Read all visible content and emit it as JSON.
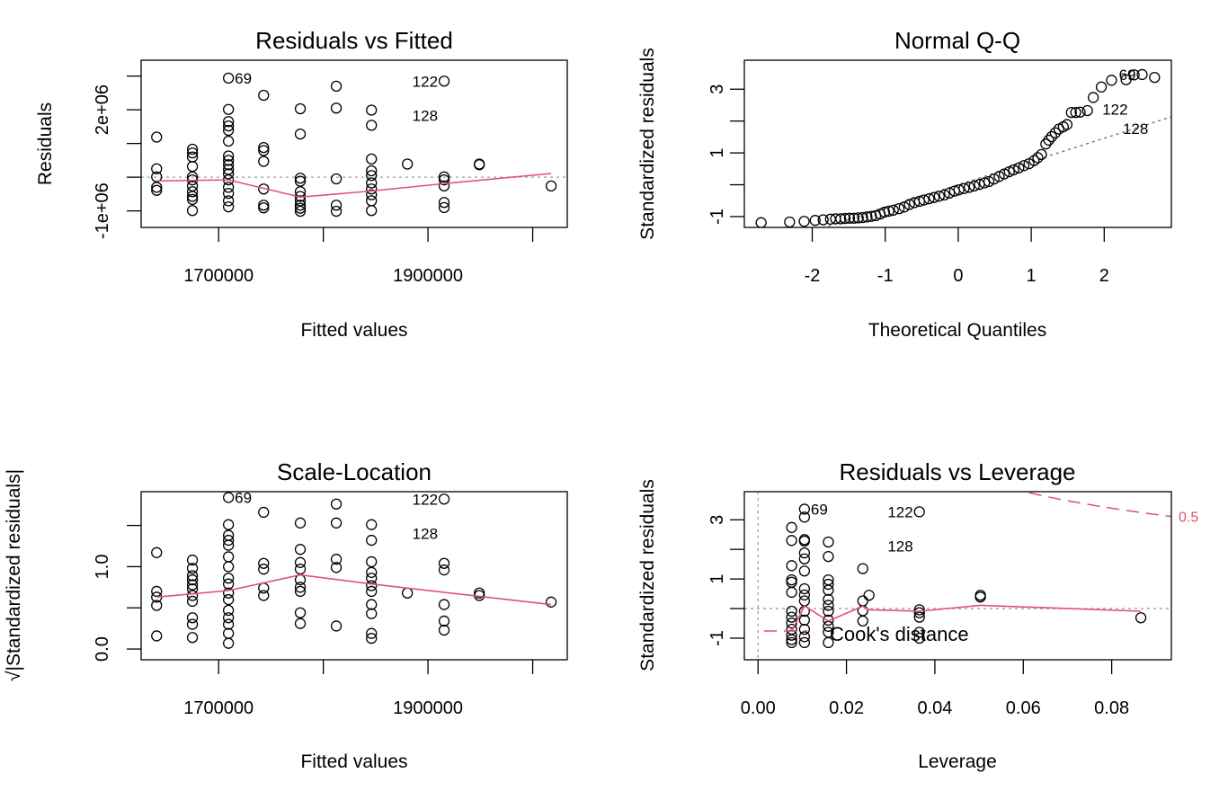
{
  "colors": {
    "points": "#000000",
    "smooth": "#DF536B",
    "reference": "#9E9E9E",
    "cook": "#DF536B"
  },
  "chart_data": [
    {
      "type": "scatter",
      "title": "Residuals vs Fitted",
      "xlabel": "Fitted values",
      "ylabel": "Residuals",
      "xlim": [
        1626000,
        2033000
      ],
      "ylim": [
        -1490000,
        3470000
      ],
      "xticks": [
        1700000,
        1800000,
        1900000,
        2000000
      ],
      "xtick_labels": [
        "1700000",
        "",
        "1900000",
        ""
      ],
      "yticks": [
        -1000000,
        0,
        1000000,
        2000000,
        3000000
      ],
      "ytick_labels": [
        "-1e+06",
        "",
        "",
        "2e+06",
        ""
      ],
      "grid": false,
      "columns": [
        {
          "x": 1640800,
          "y": [
            1190000,
            250000,
            10000,
            -300000,
            -390000
          ]
        },
        {
          "x": 1675000,
          "y": [
            830000,
            720000,
            600000,
            320000,
            10000,
            -80000,
            -260000,
            -430000,
            -570000,
            -660000,
            -990000
          ]
        },
        {
          "x": 1709400,
          "y": [
            2940000,
            2010000,
            1650000,
            1520000,
            1390000,
            1070000,
            630000,
            500000,
            370000,
            230000,
            100000,
            -80000,
            -300000,
            -480000,
            -700000,
            -880000
          ]
        },
        {
          "x": 1743000,
          "y": [
            2430000,
            880000,
            790000,
            470000,
            -350000,
            -830000,
            -910000
          ]
        },
        {
          "x": 1778000,
          "y": [
            2030000,
            1280000,
            -30000,
            -120000,
            -430000,
            -570000,
            -700000,
            -830000,
            -920000,
            -1010000
          ]
        },
        {
          "x": 1812400,
          "y": [
            2700000,
            2050000,
            -50000,
            -830000,
            -1010000
          ]
        },
        {
          "x": 1846000,
          "y": [
            1990000,
            1540000,
            540000,
            190000,
            50000,
            -170000,
            -350000,
            -520000,
            -700000,
            -990000
          ]
        },
        {
          "x": 1880300,
          "y": [
            390000
          ]
        },
        {
          "x": 1915400,
          "y": [
            2850000,
            10000,
            -80000,
            -260000,
            -750000,
            -900000
          ]
        },
        {
          "x": 1949000,
          "y": [
            390000,
            370000
          ]
        },
        {
          "x": 2017600,
          "y": [
            -260000
          ]
        }
      ],
      "smooth": [
        [
          1640800,
          -110000
        ],
        [
          1709400,
          -80000
        ],
        [
          1778000,
          -590000
        ],
        [
          1846000,
          -410000
        ],
        [
          1915400,
          -190000
        ],
        [
          2017600,
          110000
        ]
      ],
      "reference_lines": [
        {
          "orientation": "horizontal",
          "value": 0
        }
      ],
      "point_labels": [
        {
          "text": "69",
          "x": 1709400,
          "y": 2940000,
          "side": "right"
        },
        {
          "text": "122",
          "x": 1915400,
          "y": 2850000,
          "side": "left"
        },
        {
          "text": "128",
          "x": 1915400,
          "y": 2850000,
          "side": "left"
        }
      ]
    },
    {
      "type": "scatter",
      "title": "Normal Q-Q",
      "xlabel": "Theoretical Quantiles",
      "ylabel": "Standardized residuals",
      "xlim": [
        -2.93,
        2.92
      ],
      "ylim": [
        -1.34,
        3.91
      ],
      "xticks": [
        -2,
        -1,
        0,
        1,
        2
      ],
      "xtick_labels": [
        "-2",
        "-1",
        "0",
        "1",
        "2"
      ],
      "yticks": [
        -1,
        0,
        1,
        2,
        3
      ],
      "ytick_labels": [
        "-1",
        "",
        "1",
        "",
        "3"
      ],
      "grid": false,
      "points": [
        [
          -2.7,
          -1.19
        ],
        [
          -2.31,
          -1.17
        ],
        [
          -2.11,
          -1.15
        ],
        [
          -1.96,
          -1.12
        ],
        [
          -1.85,
          -1.1
        ],
        [
          -1.75,
          -1.08
        ],
        [
          -1.68,
          -1.07
        ],
        [
          -1.61,
          -1.07
        ],
        [
          -1.55,
          -1.06
        ],
        [
          -1.49,
          -1.05
        ],
        [
          -1.43,
          -1.05
        ],
        [
          -1.37,
          -1.04
        ],
        [
          -1.31,
          -1.03
        ],
        [
          -1.25,
          -1.01
        ],
        [
          -1.19,
          -0.99
        ],
        [
          -1.13,
          -0.97
        ],
        [
          -1.07,
          -0.92
        ],
        [
          -1.01,
          -0.86
        ],
        [
          -0.95,
          -0.83
        ],
        [
          -0.89,
          -0.8
        ],
        [
          -0.81,
          -0.75
        ],
        [
          -0.74,
          -0.7
        ],
        [
          -0.67,
          -0.62
        ],
        [
          -0.6,
          -0.56
        ],
        [
          -0.53,
          -0.52
        ],
        [
          -0.47,
          -0.48
        ],
        [
          -0.4,
          -0.44
        ],
        [
          -0.33,
          -0.4
        ],
        [
          -0.26,
          -0.36
        ],
        [
          -0.19,
          -0.32
        ],
        [
          -0.12,
          -0.26
        ],
        [
          -0.05,
          -0.2
        ],
        [
          0.01,
          -0.16
        ],
        [
          0.08,
          -0.12
        ],
        [
          0.15,
          -0.08
        ],
        [
          0.22,
          -0.04
        ],
        [
          0.29,
          0.01
        ],
        [
          0.36,
          0.06
        ],
        [
          0.42,
          0.1
        ],
        [
          0.49,
          0.18
        ],
        [
          0.56,
          0.26
        ],
        [
          0.63,
          0.34
        ],
        [
          0.7,
          0.41
        ],
        [
          0.76,
          0.47
        ],
        [
          0.83,
          0.53
        ],
        [
          0.9,
          0.6
        ],
        [
          0.97,
          0.66
        ],
        [
          1.04,
          0.76
        ],
        [
          1.09,
          0.85
        ],
        [
          1.14,
          0.95
        ],
        [
          1.2,
          1.28
        ],
        [
          1.24,
          1.4
        ],
        [
          1.28,
          1.51
        ],
        [
          1.33,
          1.63
        ],
        [
          1.38,
          1.75
        ],
        [
          1.44,
          1.82
        ],
        [
          1.49,
          1.89
        ],
        [
          1.55,
          2.27
        ],
        [
          1.61,
          2.27
        ],
        [
          1.67,
          2.28
        ],
        [
          1.77,
          2.33
        ],
        [
          1.85,
          2.74
        ],
        [
          1.96,
          3.07
        ],
        [
          2.1,
          3.28
        ],
        [
          2.3,
          3.3
        ],
        [
          2.41,
          3.45
        ],
        [
          2.52,
          3.46
        ],
        [
          2.69,
          3.37
        ]
      ],
      "qq_line": {
        "intercept": 0.0,
        "slope": 0.73
      },
      "point_labels": [
        {
          "text": "69",
          "x": 2.52,
          "y": 3.46,
          "side": "left"
        },
        {
          "text": "122",
          "x": 2.41,
          "y": 3.45,
          "side": "left"
        },
        {
          "text": "128",
          "x": 2.69,
          "y": 3.37,
          "side": "left"
        }
      ]
    },
    {
      "type": "scatter",
      "title": "Scale-Location",
      "xlabel": "Fitted values",
      "ylabel": "√|Standardized residuals|",
      "xlim": [
        1626000,
        2033000
      ],
      "ylim": [
        -0.13,
        1.91
      ],
      "xticks": [
        1700000,
        1800000,
        1900000,
        2000000
      ],
      "xtick_labels": [
        "1700000",
        "",
        "1900000",
        ""
      ],
      "yticks": [
        0,
        0.5,
        1.0,
        1.5
      ],
      "ytick_labels": [
        "0.0",
        "",
        "1.0",
        ""
      ],
      "grid": false,
      "columns": [
        {
          "x": 1640800,
          "y": [
            1.17,
            0.7,
            0.63,
            0.53,
            0.16
          ]
        },
        {
          "x": 1675000,
          "y": [
            1.08,
            0.98,
            0.89,
            0.84,
            0.78,
            0.73,
            0.65,
            0.58,
            0.38,
            0.3,
            0.14
          ]
        },
        {
          "x": 1709400,
          "y": [
            1.84,
            1.51,
            1.38,
            1.32,
            1.26,
            1.12,
            1.0,
            0.86,
            0.79,
            0.68,
            0.6,
            0.47,
            0.38,
            0.3,
            0.19,
            0.07
          ]
        },
        {
          "x": 1743000,
          "y": [
            1.66,
            1.04,
            0.97,
            0.74,
            0.65
          ]
        },
        {
          "x": 1778000,
          "y": [
            1.53,
            1.21,
            1.05,
            0.97,
            0.84,
            0.75,
            0.7,
            0.44,
            0.31
          ]
        },
        {
          "x": 1812400,
          "y": [
            1.76,
            1.53,
            1.09,
            0.99,
            0.28
          ]
        },
        {
          "x": 1846000,
          "y": [
            1.51,
            1.32,
            1.06,
            0.93,
            0.86,
            0.77,
            0.7,
            0.54,
            0.43,
            0.19,
            0.13
          ]
        },
        {
          "x": 1880300,
          "y": [
            0.68
          ]
        },
        {
          "x": 1915400,
          "y": [
            1.82,
            1.04,
            0.96,
            0.54,
            0.34,
            0.23
          ]
        },
        {
          "x": 1949000,
          "y": [
            0.68,
            0.65
          ]
        },
        {
          "x": 2017600,
          "y": [
            0.57
          ]
        }
      ],
      "smooth": [
        [
          1640800,
          0.63
        ],
        [
          1709400,
          0.71
        ],
        [
          1778000,
          0.9
        ],
        [
          1846000,
          0.79
        ],
        [
          1949000,
          0.64
        ],
        [
          2017600,
          0.54
        ]
      ],
      "point_labels": [
        {
          "text": "69",
          "x": 1709400,
          "y": 1.84,
          "side": "right"
        },
        {
          "text": "122",
          "x": 1915400,
          "y": 1.82,
          "side": "left"
        },
        {
          "text": "128",
          "x": 1915400,
          "y": 1.82,
          "side": "left"
        }
      ]
    },
    {
      "type": "scatter",
      "title": "Residuals vs Leverage",
      "xlabel": "Leverage",
      "ylabel": "Standardized residuals",
      "xlim": [
        -0.0031,
        0.0935
      ],
      "ylim": [
        -1.73,
        3.95
      ],
      "xticks": [
        0,
        0.02,
        0.04,
        0.06,
        0.08
      ],
      "xtick_labels": [
        "0.00",
        "0.02",
        "0.04",
        "0.06",
        "0.08"
      ],
      "yticks": [
        -1,
        0,
        1,
        2,
        3
      ],
      "ytick_labels": [
        "-1",
        "",
        "1",
        "",
        "3"
      ],
      "grid": false,
      "columns": [
        {
          "x": 0.0076,
          "y": [
            2.74,
            2.3,
            1.45,
            0.97,
            0.89,
            0.55,
            -0.09,
            -0.29,
            -0.49,
            -0.7,
            -0.9,
            -1.05,
            -1.15
          ]
        },
        {
          "x": 0.0105,
          "y": [
            3.36,
            3.09,
            2.33,
            2.28,
            1.88,
            1.68,
            1.27,
            0.67,
            0.46,
            0.26,
            -0.09,
            -0.39,
            -0.7,
            -0.95,
            -1.15
          ]
        },
        {
          "x": 0.0159,
          "y": [
            2.25,
            1.76,
            0.97,
            0.82,
            0.62,
            0.31,
            0.11,
            -0.09,
            -0.39,
            -0.6,
            -0.8,
            -1.15
          ]
        },
        {
          "x": 0.0237,
          "y": [
            1.35,
            0.26,
            -0.07,
            -0.42
          ]
        },
        {
          "x": 0.0251,
          "y": [
            0.45
          ]
        },
        {
          "x": 0.0365,
          "y": [
            3.27,
            -0.04,
            -0.14,
            -0.29,
            -0.8,
            -1.0
          ]
        },
        {
          "x": 0.0503,
          "y": [
            0.45,
            0.39
          ]
        },
        {
          "x": 0.0866,
          "y": [
            -0.31
          ]
        }
      ],
      "smooth": [
        [
          0.0076,
          -0.77
        ],
        [
          0.0105,
          0.09
        ],
        [
          0.0159,
          -0.42
        ],
        [
          0.0237,
          0.08
        ],
        [
          0.0251,
          -0.04
        ],
        [
          0.0365,
          -0.09
        ],
        [
          0.0503,
          0.11
        ],
        [
          0.0866,
          -0.09
        ]
      ],
      "reference_lines": [
        {
          "orientation": "horizontal",
          "value": 0
        },
        {
          "orientation": "vertical",
          "value": 0
        }
      ],
      "cook_contour": {
        "level": 0.5,
        "label": "0.5",
        "n_params": 2
      },
      "legend": {
        "text": "Cook's distance",
        "position": "bottom-left"
      },
      "point_labels": [
        {
          "text": "69",
          "x": 0.0105,
          "y": 3.36,
          "side": "right"
        },
        {
          "text": "122",
          "x": 0.0365,
          "y": 3.27,
          "side": "left"
        },
        {
          "text": "128",
          "x": 0.0365,
          "y": 3.27,
          "side": "left"
        }
      ]
    }
  ]
}
